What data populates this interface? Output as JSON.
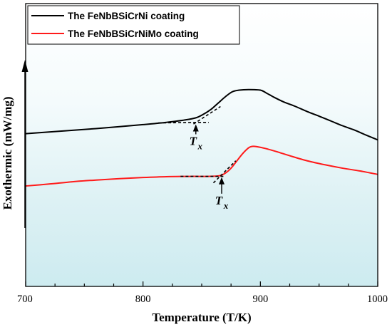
{
  "chart_data": {
    "type": "line",
    "xlabel": "Temperature (T/K)",
    "ylabel": "Exothermic (mW/mg)",
    "xlim": [
      700,
      1000
    ],
    "x_ticks": [
      700,
      800,
      900,
      1000
    ],
    "y_ticks_shown": false,
    "background": "gradient-white-to-light-cyan",
    "legend_position": "top-left",
    "series": [
      {
        "name": "The FeNbBSiCrNi coating",
        "color": "#000000",
        "points": [
          [
            700,
            0.54
          ],
          [
            720,
            0.546
          ],
          [
            740,
            0.552
          ],
          [
            760,
            0.558
          ],
          [
            780,
            0.565
          ],
          [
            800,
            0.572
          ],
          [
            820,
            0.58
          ],
          [
            835,
            0.588
          ],
          [
            845,
            0.596
          ],
          [
            852,
            0.61
          ],
          [
            858,
            0.626
          ],
          [
            864,
            0.648
          ],
          [
            870,
            0.67
          ],
          [
            876,
            0.688
          ],
          [
            882,
            0.694
          ],
          [
            890,
            0.696
          ],
          [
            900,
            0.694
          ],
          [
            905,
            0.684
          ],
          [
            912,
            0.668
          ],
          [
            920,
            0.652
          ],
          [
            930,
            0.636
          ],
          [
            940,
            0.618
          ],
          [
            950,
            0.602
          ],
          [
            960,
            0.585
          ],
          [
            970,
            0.568
          ],
          [
            980,
            0.553
          ],
          [
            990,
            0.535
          ],
          [
            1000,
            0.518
          ]
        ]
      },
      {
        "name": "The FeNbBSiCrNiMo coating",
        "color": "#ff1a1a",
        "points": [
          [
            700,
            0.355
          ],
          [
            720,
            0.362
          ],
          [
            740,
            0.37
          ],
          [
            760,
            0.376
          ],
          [
            780,
            0.381
          ],
          [
            800,
            0.385
          ],
          [
            820,
            0.388
          ],
          [
            840,
            0.389
          ],
          [
            855,
            0.389
          ],
          [
            865,
            0.391
          ],
          [
            870,
            0.4
          ],
          [
            875,
            0.418
          ],
          [
            880,
            0.444
          ],
          [
            885,
            0.47
          ],
          [
            890,
            0.49
          ],
          [
            893,
            0.495
          ],
          [
            897,
            0.494
          ],
          [
            905,
            0.487
          ],
          [
            915,
            0.475
          ],
          [
            925,
            0.462
          ],
          [
            940,
            0.444
          ],
          [
            955,
            0.43
          ],
          [
            970,
            0.418
          ],
          [
            985,
            0.408
          ],
          [
            1000,
            0.396
          ]
        ]
      }
    ],
    "tangent_lines": [
      {
        "series": "The FeNbBSiCrNi coating",
        "points": [
          [
            813,
            0.578
          ],
          [
            856,
            0.58
          ],
          [
            843,
            0.574
          ],
          [
            866,
            0.636
          ]
        ]
      },
      {
        "series": "The FeNbBSiCrNiMo coating",
        "points": [
          [
            832,
            0.389
          ],
          [
            869,
            0.389
          ],
          [
            860,
            0.366
          ],
          [
            879,
            0.444
          ]
        ]
      }
    ],
    "annotations": [
      {
        "text_main": "T",
        "text_sub": "x",
        "x": 845,
        "y": 0.5,
        "arrow_to": [
          845,
          0.573
        ]
      },
      {
        "text_main": "T",
        "text_sub": "x",
        "x": 867,
        "y": 0.29,
        "arrow_to": [
          867,
          0.386
        ]
      }
    ],
    "y_arrow": true
  }
}
